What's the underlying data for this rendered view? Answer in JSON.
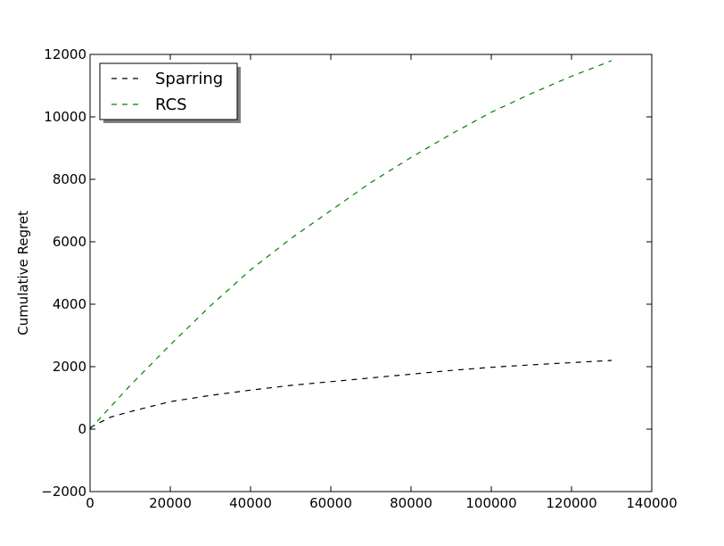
{
  "chart_data": {
    "type": "line",
    "title": "",
    "xlabel": "",
    "ylabel": "Cumulative Regret",
    "xlim": [
      0,
      140000
    ],
    "ylim": [
      -2000,
      12000
    ],
    "xticks": [
      0,
      20000,
      40000,
      60000,
      80000,
      100000,
      120000,
      140000
    ],
    "yticks": [
      -2000,
      0,
      2000,
      4000,
      6000,
      8000,
      10000,
      12000
    ],
    "xtick_labels": [
      "0",
      "20000",
      "40000",
      "60000",
      "80000",
      "100000",
      "120000",
      "140000"
    ],
    "ytick_labels": [
      "−2000",
      "0",
      "2000",
      "4000",
      "6000",
      "8000",
      "10000",
      "12000"
    ],
    "grid": false,
    "legend_position": "top-left",
    "series": [
      {
        "name": "Sparring",
        "color": "#000000",
        "line_style": "dashed",
        "x": [
          0,
          5000,
          10000,
          20000,
          30000,
          40000,
          50000,
          60000,
          70000,
          80000,
          90000,
          100000,
          110000,
          120000,
          130000
        ],
        "y": [
          50,
          380,
          560,
          880,
          1080,
          1250,
          1400,
          1520,
          1640,
          1760,
          1880,
          1980,
          2060,
          2130,
          2200
        ]
      },
      {
        "name": "RCS",
        "color": "#008000",
        "line_style": "dashed",
        "x": [
          0,
          5000,
          10000,
          20000,
          30000,
          40000,
          50000,
          60000,
          70000,
          80000,
          90000,
          100000,
          110000,
          120000,
          130000
        ],
        "y": [
          0,
          700,
          1400,
          2700,
          3950,
          5100,
          6100,
          7000,
          7900,
          8700,
          9450,
          10150,
          10750,
          11300,
          11800
        ]
      }
    ]
  }
}
